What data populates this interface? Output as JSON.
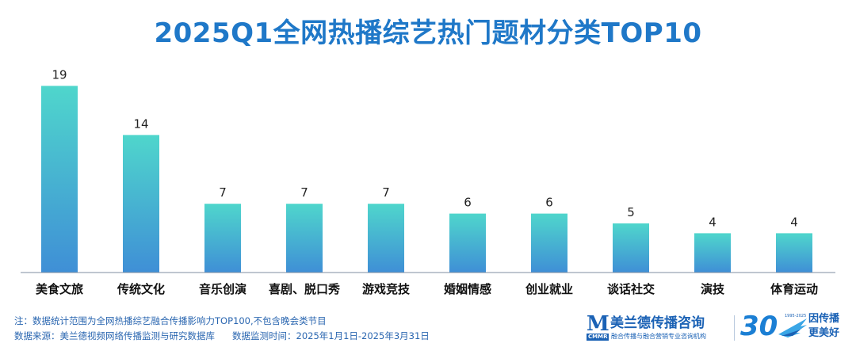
{
  "chart_data": {
    "type": "bar",
    "title": "2025Q1全网热播综艺热门题材分类TOP10",
    "categories": [
      "美食文旅",
      "传统文化",
      "音乐创演",
      "喜剧、脱口秀",
      "游戏竞技",
      "婚姻情感",
      "创业就业",
      "谈话社交",
      "演技",
      "体育运动"
    ],
    "values": [
      19,
      14,
      7,
      7,
      7,
      6,
      6,
      5,
      4,
      4
    ],
    "ylim": [
      0,
      20
    ],
    "xlabel": "",
    "ylabel": "",
    "grid": false,
    "legend": "none",
    "bar_gradient_top": "#4fd6cc",
    "bar_gradient_bottom": "#3f8fd6"
  },
  "footer": {
    "note": "注：数据统计范围为全网热播综艺融合传播影响力TOP100,不包含晚会类节目",
    "source": "数据来源：美兰德视频网络传播监测与研究数据库",
    "period": "数据监测时间：2025年1月1日-2025年3月31日"
  },
  "logo": {
    "mark": "M",
    "abbr": "CMMR",
    "name": "美兰德传播咨询",
    "slogan": "融合传播与融合营销专业咨询机构"
  },
  "badge": {
    "number": "30",
    "years": "1995-2025",
    "line1": "因传播",
    "line2": "更美好"
  },
  "colors": {
    "title": "#1f78c8",
    "footer": "#2a66b0",
    "brand": "#1b62b5"
  }
}
